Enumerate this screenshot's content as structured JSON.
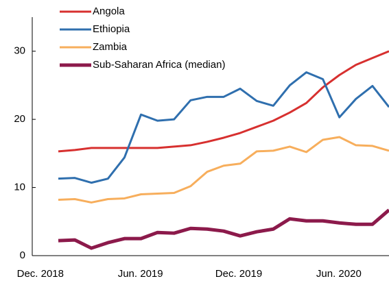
{
  "chart_data": {
    "type": "line",
    "categories": [
      "Dec. 2018",
      null,
      null,
      null,
      null,
      null,
      "Jun. 2019",
      null,
      null,
      null,
      null,
      null,
      "Dec. 2019",
      null,
      null,
      null,
      null,
      null,
      "Jun. 2020",
      null,
      null
    ],
    "series": [
      {
        "name": "Angola",
        "color": "#d7302f",
        "values": [
          15.3,
          15.5,
          15.8,
          15.8,
          15.8,
          15.8,
          15.8,
          16.0,
          16.2,
          16.7,
          17.3,
          18.0,
          18.9,
          19.8,
          21.0,
          22.4,
          24.7,
          26.5,
          28.0,
          29.0,
          30.0
        ]
      },
      {
        "name": "Ethiopia",
        "color": "#2f6fae",
        "values": [
          11.3,
          11.4,
          10.7,
          11.3,
          14.4,
          20.7,
          19.8,
          20.0,
          22.8,
          23.3,
          23.3,
          24.5,
          22.7,
          22.0,
          25.0,
          26.9,
          25.9,
          20.3,
          23.0,
          24.9,
          21.8
        ]
      },
      {
        "name": "Zambia",
        "color": "#f7ae5c",
        "values": [
          8.2,
          8.3,
          7.8,
          8.3,
          8.4,
          9.0,
          9.1,
          9.2,
          10.2,
          12.3,
          13.2,
          13.5,
          15.3,
          15.4,
          16.0,
          15.2,
          17.0,
          17.4,
          16.2,
          16.1,
          15.4
        ]
      },
      {
        "name": "Sub-Saharan Africa (median)",
        "color": "#8c1a4b",
        "values": [
          2.2,
          2.3,
          1.1,
          1.9,
          2.5,
          2.5,
          3.4,
          3.3,
          4.0,
          3.9,
          3.6,
          2.9,
          3.5,
          3.9,
          5.4,
          5.1,
          5.1,
          4.8,
          4.6,
          4.6,
          6.7
        ]
      }
    ],
    "ylim": [
      0,
      35
    ],
    "yticks": [
      0,
      10,
      20,
      30
    ],
    "grid": false
  }
}
